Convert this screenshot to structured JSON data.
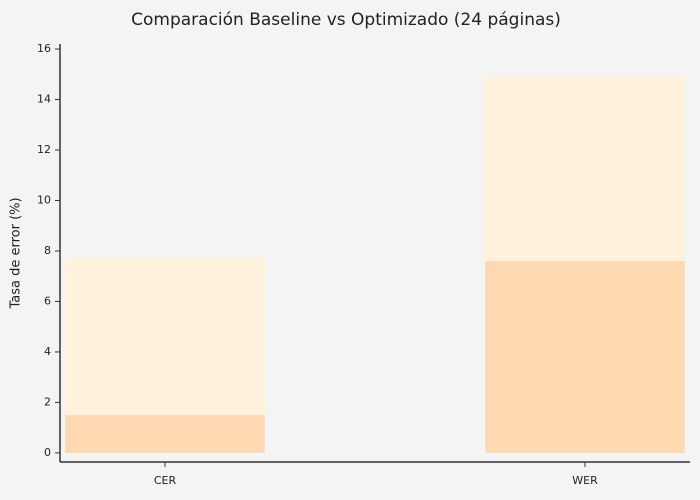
{
  "chart_data": {
    "type": "bar",
    "title": "Comparación Baseline vs Optimizado (24 páginas)",
    "y_label": "Tasa de error (%)",
    "categories": [
      "CER",
      "WER"
    ],
    "series": [
      {
        "color": "#fff1dc",
        "values": [
          7.7,
          14.9
        ]
      },
      {
        "color": "#fed8b1",
        "values": [
          1.5,
          7.6
        ]
      }
    ],
    "ylim": [
      -0.36,
      16.2
    ],
    "yticks": [
      0,
      2,
      4,
      6,
      8,
      10,
      12,
      14,
      16
    ],
    "grid": false
  }
}
